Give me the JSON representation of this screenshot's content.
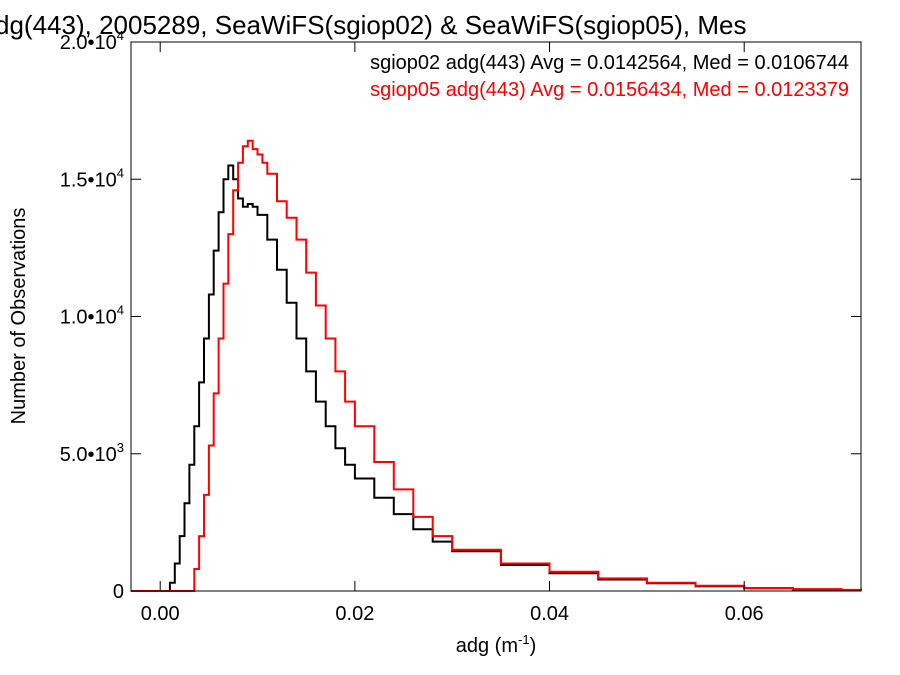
{
  "chart_data": {
    "type": "line",
    "title": "dg(443), 2005289, SeaWiFS(sgiop02) & SeaWiFS(sgiop05), Mes",
    "xlabel": "adg (m",
    "xlabel_sup": "-1",
    "xlabel_tail": ")",
    "ylabel": "Number of Observations",
    "xlim": [
      -0.003,
      0.072
    ],
    "ylim": [
      0,
      20000
    ],
    "x_ticks": [
      0.0,
      0.02,
      0.04,
      0.06
    ],
    "x_tick_labels": [
      "0.00",
      "0.02",
      "0.04",
      "0.06"
    ],
    "y_ticks": [
      0,
      5000,
      10000,
      15000,
      20000
    ],
    "y_tick_labels": [
      {
        "main": "0",
        "sup": ""
      },
      {
        "main": "5.0•10",
        "sup": "3"
      },
      {
        "main": "1.0•10",
        "sup": "4"
      },
      {
        "main": "1.5•10",
        "sup": "4"
      },
      {
        "main": "2.0•10",
        "sup": "4"
      }
    ],
    "legend": {
      "placement": "top-right",
      "entries": [
        {
          "text": "sgiop02 adg(443) Avg = 0.0142564, Med = 0.0106744",
          "color": "#000000"
        },
        {
          "text": "sgiop05 adg(443) Avg = 0.0156434, Med = 0.0123379",
          "color": "#ff0000"
        }
      ]
    },
    "series": [
      {
        "color": "#000000",
        "x": [
          -0.003,
          0.0005,
          0.001,
          0.0015,
          0.002,
          0.0025,
          0.003,
          0.0035,
          0.004,
          0.0045,
          0.005,
          0.0055,
          0.006,
          0.0065,
          0.007,
          0.0075,
          0.008,
          0.0085,
          0.009,
          0.0095,
          0.01,
          0.011,
          0.012,
          0.013,
          0.014,
          0.015,
          0.016,
          0.017,
          0.018,
          0.019,
          0.02,
          0.022,
          0.024,
          0.026,
          0.028,
          0.03,
          0.035,
          0.04,
          0.045,
          0.05,
          0.055,
          0.06,
          0.065,
          0.07,
          0.072
        ],
        "y": [
          0,
          0,
          300,
          1000,
          2000,
          3200,
          4600,
          6000,
          7600,
          9200,
          10800,
          12400,
          13800,
          15000,
          15500,
          15000,
          14300,
          14000,
          14100,
          14000,
          13700,
          12800,
          11700,
          10500,
          9200,
          8000,
          6900,
          6000,
          5200,
          4600,
          4100,
          3400,
          2800,
          2250,
          1800,
          1450,
          950,
          650,
          420,
          280,
          170,
          100,
          60,
          30,
          20
        ]
      },
      {
        "color": "#ff0000",
        "x": [
          -0.003,
          0.003,
          0.0035,
          0.004,
          0.0045,
          0.005,
          0.0055,
          0.006,
          0.0065,
          0.007,
          0.0075,
          0.008,
          0.0085,
          0.009,
          0.0095,
          0.01,
          0.0105,
          0.011,
          0.012,
          0.013,
          0.014,
          0.015,
          0.016,
          0.017,
          0.018,
          0.019,
          0.02,
          0.022,
          0.024,
          0.026,
          0.028,
          0.03,
          0.035,
          0.04,
          0.045,
          0.05,
          0.055,
          0.06,
          0.065,
          0.07,
          0.072
        ],
        "y": [
          0,
          0,
          800,
          2000,
          3500,
          5300,
          7200,
          9200,
          11200,
          13000,
          14600,
          15600,
          16200,
          16400,
          16100,
          15900,
          15600,
          15200,
          14200,
          13600,
          12800,
          11600,
          10400,
          9200,
          8000,
          6900,
          6000,
          4700,
          3700,
          2700,
          2000,
          1500,
          1000,
          700,
          460,
          300,
          190,
          110,
          70,
          40,
          25
        ]
      }
    ]
  }
}
